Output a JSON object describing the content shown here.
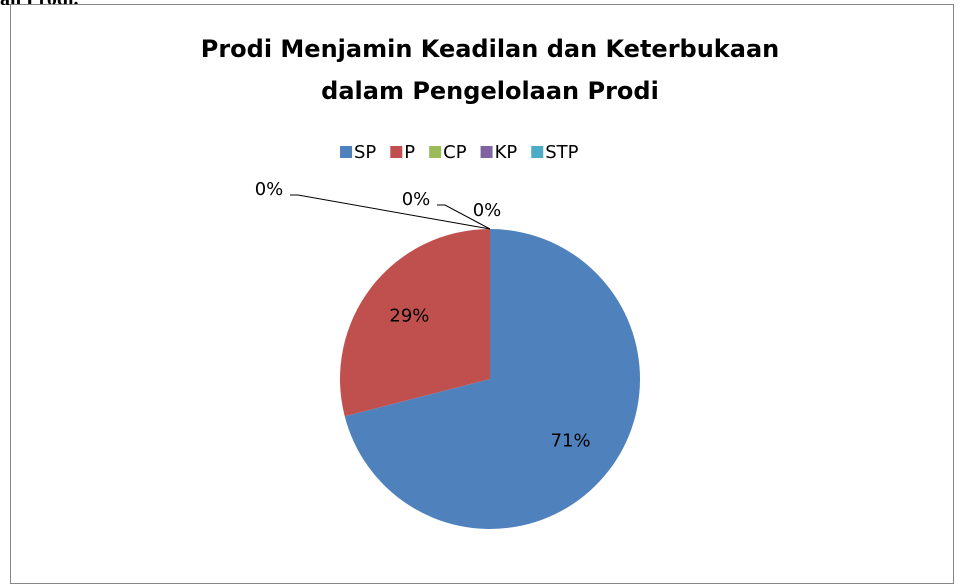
{
  "page_text": "an Prodi.",
  "chart_data": {
    "type": "pie",
    "title": "Prodi Menjamin Keadilan dan Keterbukaan dalam Pengelolaan Prodi",
    "categories": [
      "SP",
      "P",
      "CP",
      "KP",
      "STP"
    ],
    "values": [
      71,
      29,
      0,
      0,
      0
    ],
    "value_labels": [
      "71%",
      "29%",
      "0%",
      "0%",
      "0%"
    ],
    "colors": [
      "#4f81bd",
      "#c0504d",
      "#9bbb59",
      "#8064a2",
      "#4bacc6"
    ],
    "legend": "top"
  }
}
